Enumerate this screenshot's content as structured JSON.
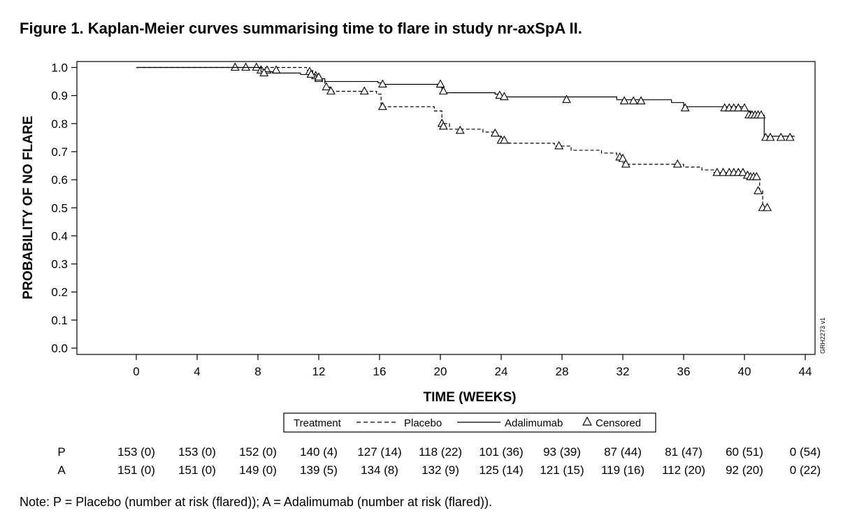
{
  "title": "Figure 1. Kaplan-Meier curves summarising time to flare in study nr-axSpA II.",
  "note": "Note: P = Placebo (number at risk (flared)); A = Adalimumab (number at risk (flared)).",
  "figure_code": "GRH2273 v1",
  "legend": {
    "title": "Treatment",
    "placebo": "Placebo",
    "adalimumab": "Adalimumab",
    "censored": "Censored"
  },
  "risk_table": {
    "rows": [
      {
        "label": "P",
        "values": [
          "153 (0)",
          "153 (0)",
          "152 (0)",
          "140 (4)",
          "127 (14)",
          "118 (22)",
          "101 (36)",
          "93 (39)",
          "87 (44)",
          "81 (47)",
          "60 (51)",
          "0 (54)"
        ]
      },
      {
        "label": "A",
        "values": [
          "151 (0)",
          "151 (0)",
          "149 (0)",
          "139 (5)",
          "134 (8)",
          "132 (9)",
          "125 (14)",
          "121 (15)",
          "119 (16)",
          "112 (20)",
          "92 (20)",
          "0 (22)"
        ]
      }
    ]
  },
  "chart_data": {
    "type": "line",
    "subtype": "kaplan-meier step",
    "xlabel": "TIME (WEEKS)",
    "ylabel": "PROBABILITY OF NO FLARE",
    "xlim": [
      -4,
      44.8
    ],
    "ylim": [
      0,
      1.02
    ],
    "xticks": [
      0,
      4,
      8,
      12,
      16,
      20,
      24,
      28,
      32,
      36,
      40,
      44
    ],
    "yticks": [
      0.0,
      0.1,
      0.2,
      0.3,
      0.4,
      0.5,
      0.6,
      0.7,
      0.8,
      0.9,
      1.0
    ],
    "grid": false,
    "legend_position": "bottom",
    "series": [
      {
        "name": "Placebo",
        "line_style": "dashed",
        "steps": [
          [
            0,
            1.0
          ],
          [
            11.2,
            0.99
          ],
          [
            11.6,
            0.975
          ],
          [
            12.0,
            0.955
          ],
          [
            12.4,
            0.93
          ],
          [
            12.8,
            0.915
          ],
          [
            15.8,
            0.905
          ],
          [
            16.1,
            0.86
          ],
          [
            19.6,
            0.845
          ],
          [
            20.1,
            0.8
          ],
          [
            20.6,
            0.78
          ],
          [
            22.8,
            0.77
          ],
          [
            23.6,
            0.755
          ],
          [
            24.0,
            0.735
          ],
          [
            24.5,
            0.73
          ],
          [
            27.5,
            0.72
          ],
          [
            28.6,
            0.705
          ],
          [
            30.6,
            0.695
          ],
          [
            31.6,
            0.685
          ],
          [
            32.0,
            0.66
          ],
          [
            32.2,
            0.655
          ],
          [
            36.0,
            0.645
          ],
          [
            37.2,
            0.635
          ],
          [
            38.0,
            0.625
          ],
          [
            40.2,
            0.615
          ],
          [
            40.6,
            0.605
          ],
          [
            41.0,
            0.56
          ],
          [
            41.2,
            0.5
          ],
          [
            41.6,
            0.5
          ]
        ],
        "censored": [
          [
            6.5,
            1.0
          ],
          [
            7.2,
            1.0
          ],
          [
            7.9,
            1.0
          ],
          [
            8.2,
            0.99
          ],
          [
            8.6,
            0.99
          ],
          [
            9.2,
            0.99
          ],
          [
            11.4,
            0.985
          ],
          [
            11.8,
            0.97
          ],
          [
            12.0,
            0.96
          ],
          [
            12.5,
            0.93
          ],
          [
            12.8,
            0.915
          ],
          [
            15.0,
            0.915
          ],
          [
            16.2,
            0.86
          ],
          [
            20.1,
            0.8
          ],
          [
            20.2,
            0.79
          ],
          [
            21.3,
            0.775
          ],
          [
            23.6,
            0.765
          ],
          [
            24.0,
            0.74
          ],
          [
            24.2,
            0.74
          ],
          [
            27.8,
            0.72
          ],
          [
            31.8,
            0.68
          ],
          [
            32.0,
            0.675
          ],
          [
            32.2,
            0.655
          ],
          [
            35.6,
            0.655
          ],
          [
            38.2,
            0.625
          ],
          [
            38.6,
            0.625
          ],
          [
            39.0,
            0.625
          ],
          [
            39.3,
            0.625
          ],
          [
            39.6,
            0.625
          ],
          [
            39.9,
            0.625
          ],
          [
            40.2,
            0.615
          ],
          [
            40.4,
            0.61
          ],
          [
            40.6,
            0.61
          ],
          [
            40.8,
            0.61
          ],
          [
            40.9,
            0.56
          ],
          [
            41.2,
            0.5
          ],
          [
            41.5,
            0.5
          ]
        ]
      },
      {
        "name": "Adalimumab",
        "line_style": "solid",
        "steps": [
          [
            0,
            1.0
          ],
          [
            8.2,
            0.985
          ],
          [
            9.0,
            0.98
          ],
          [
            10.8,
            0.975
          ],
          [
            11.8,
            0.97
          ],
          [
            12.0,
            0.96
          ],
          [
            12.4,
            0.95
          ],
          [
            15.9,
            0.945
          ],
          [
            16.2,
            0.94
          ],
          [
            19.8,
            0.93
          ],
          [
            20.1,
            0.91
          ],
          [
            23.6,
            0.905
          ],
          [
            24.0,
            0.895
          ],
          [
            31.6,
            0.885
          ],
          [
            35.2,
            0.875
          ],
          [
            36.0,
            0.86
          ],
          [
            40.0,
            0.845
          ],
          [
            40.4,
            0.83
          ],
          [
            41.3,
            0.755
          ],
          [
            43.3,
            0.755
          ]
        ],
        "censored": [
          [
            8.4,
            0.98
          ],
          [
            11.5,
            0.975
          ],
          [
            12.0,
            0.965
          ],
          [
            16.2,
            0.94
          ],
          [
            20.0,
            0.94
          ],
          [
            20.2,
            0.915
          ],
          [
            23.9,
            0.9
          ],
          [
            24.2,
            0.895
          ],
          [
            28.3,
            0.885
          ],
          [
            32.1,
            0.88
          ],
          [
            32.7,
            0.88
          ],
          [
            33.2,
            0.88
          ],
          [
            36.1,
            0.855
          ],
          [
            38.7,
            0.855
          ],
          [
            39.0,
            0.855
          ],
          [
            39.3,
            0.855
          ],
          [
            39.6,
            0.855
          ],
          [
            40.0,
            0.855
          ],
          [
            40.3,
            0.83
          ],
          [
            40.5,
            0.83
          ],
          [
            40.7,
            0.83
          ],
          [
            40.9,
            0.83
          ],
          [
            41.1,
            0.83
          ],
          [
            41.4,
            0.75
          ],
          [
            41.7,
            0.75
          ],
          [
            42.4,
            0.75
          ],
          [
            43.0,
            0.75
          ]
        ]
      }
    ]
  }
}
